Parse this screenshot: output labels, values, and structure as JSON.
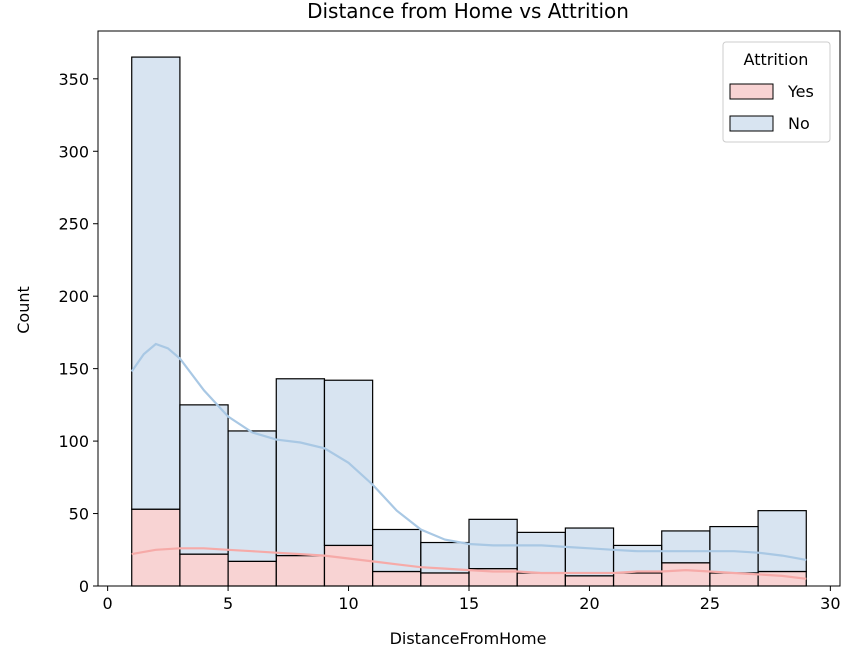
{
  "chart_data": {
    "type": "bar",
    "title": "Distance from Home vs Attrition",
    "xlabel": "DistanceFromHome",
    "ylabel": "Count",
    "xlim": [
      -0.4,
      30.4
    ],
    "ylim": [
      0,
      383
    ],
    "x_ticks": [
      0,
      5,
      10,
      15,
      20,
      25,
      30
    ],
    "y_ticks": [
      0,
      50,
      100,
      150,
      200,
      250,
      300,
      350
    ],
    "bin_edges": [
      1,
      3,
      5,
      7,
      9,
      11,
      13,
      15,
      17,
      19,
      21,
      23,
      25,
      27,
      29
    ],
    "stacked": true,
    "grid": false,
    "legend": {
      "title": "Attrition",
      "placement": "top-right"
    },
    "series": [
      {
        "name": "Yes",
        "color": "#f4b6b5",
        "values": [
          53,
          22,
          17,
          21,
          28,
          10,
          9,
          12,
          9,
          7,
          9,
          16,
          9,
          10
        ],
        "kde": [
          [
            1,
            22
          ],
          [
            2,
            25
          ],
          [
            3,
            26
          ],
          [
            4,
            26
          ],
          [
            5,
            25
          ],
          [
            6,
            24
          ],
          [
            7,
            23
          ],
          [
            8,
            22
          ],
          [
            9,
            21
          ],
          [
            10,
            19
          ],
          [
            11,
            17
          ],
          [
            12,
            15
          ],
          [
            13,
            13
          ],
          [
            14,
            12
          ],
          [
            15,
            11
          ],
          [
            16,
            10
          ],
          [
            17,
            10
          ],
          [
            18,
            9
          ],
          [
            19,
            9
          ],
          [
            20,
            9
          ],
          [
            21,
            9
          ],
          [
            22,
            10
          ],
          [
            23,
            10
          ],
          [
            24,
            11
          ],
          [
            25,
            10
          ],
          [
            26,
            9
          ],
          [
            27,
            8
          ],
          [
            28,
            7
          ],
          [
            29,
            5
          ]
        ]
      },
      {
        "name": "No",
        "color": "#bed2e8",
        "values": [
          312,
          103,
          90,
          122,
          114,
          29,
          21,
          34,
          28,
          33,
          19,
          22,
          32,
          42
        ],
        "kde": [
          [
            1,
            148
          ],
          [
            1.5,
            160
          ],
          [
            2,
            167
          ],
          [
            2.5,
            164
          ],
          [
            3,
            157
          ],
          [
            4,
            135
          ],
          [
            5,
            117
          ],
          [
            6,
            106
          ],
          [
            7,
            101
          ],
          [
            8,
            99
          ],
          [
            9,
            95
          ],
          [
            10,
            85
          ],
          [
            11,
            70
          ],
          [
            12,
            52
          ],
          [
            13,
            39
          ],
          [
            14,
            32
          ],
          [
            15,
            29
          ],
          [
            16,
            28
          ],
          [
            17,
            28
          ],
          [
            18,
            28
          ],
          [
            19,
            27
          ],
          [
            20,
            26
          ],
          [
            21,
            25
          ],
          [
            22,
            24
          ],
          [
            23,
            24
          ],
          [
            24,
            24
          ],
          [
            25,
            24
          ],
          [
            26,
            24
          ],
          [
            27,
            23
          ],
          [
            28,
            21
          ],
          [
            29,
            18
          ]
        ]
      }
    ]
  }
}
